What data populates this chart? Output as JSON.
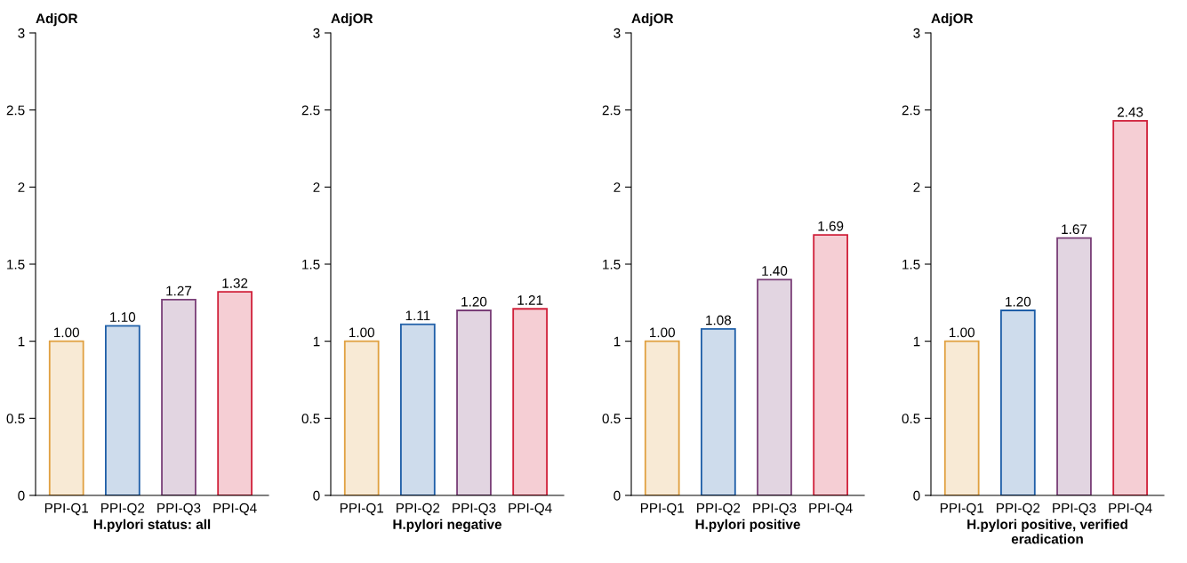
{
  "chart_data": [
    {
      "type": "bar",
      "xlabel": "H.pylori status: all",
      "ylabel": "AdjOR",
      "categories": [
        "PPI-Q1",
        "PPI-Q2",
        "PPI-Q3",
        "PPI-Q4"
      ],
      "values": [
        1.0,
        1.1,
        1.27,
        1.32
      ],
      "value_labels": [
        "1.00",
        "1.10",
        "1.27",
        "1.32"
      ],
      "colors": [
        "#e0a040",
        "#1f5fa8",
        "#7a3f78",
        "#d0203a"
      ],
      "ylim": [
        0,
        3
      ],
      "yticks": [
        0,
        0.5,
        1,
        1.5,
        2,
        2.5,
        3
      ],
      "grid": false,
      "legend": false
    },
    {
      "type": "bar",
      "xlabel": "H.pylori negative",
      "ylabel": "AdjOR",
      "categories": [
        "PPI-Q1",
        "PPI-Q2",
        "PPI-Q3",
        "PPI-Q4"
      ],
      "values": [
        1.0,
        1.11,
        1.2,
        1.21
      ],
      "value_labels": [
        "1.00",
        "1.11",
        "1.20",
        "1.21"
      ],
      "colors": [
        "#e0a040",
        "#1f5fa8",
        "#7a3f78",
        "#d0203a"
      ],
      "ylim": [
        0,
        3
      ],
      "yticks": [
        0,
        0.5,
        1,
        1.5,
        2,
        2.5,
        3
      ],
      "grid": false,
      "legend": false
    },
    {
      "type": "bar",
      "xlabel": "H.pylori positive",
      "ylabel": "AdjOR",
      "categories": [
        "PPI-Q1",
        "PPI-Q2",
        "PPI-Q3",
        "PPI-Q4"
      ],
      "values": [
        1.0,
        1.08,
        1.4,
        1.69
      ],
      "value_labels": [
        "1.00",
        "1.08",
        "1.40",
        "1.69"
      ],
      "colors": [
        "#e0a040",
        "#1f5fa8",
        "#7a3f78",
        "#d0203a"
      ],
      "ylim": [
        0,
        3
      ],
      "yticks": [
        0,
        0.5,
        1,
        1.5,
        2,
        2.5,
        3
      ],
      "grid": false,
      "legend": false
    },
    {
      "type": "bar",
      "xlabel": "H.pylori positive, verified\neradication",
      "ylabel": "AdjOR",
      "categories": [
        "PPI-Q1",
        "PPI-Q2",
        "PPI-Q3",
        "PPI-Q4"
      ],
      "values": [
        1.0,
        1.2,
        1.67,
        2.43
      ],
      "value_labels": [
        "1.00",
        "1.20",
        "1.67",
        "2.43"
      ],
      "colors": [
        "#e0a040",
        "#1f5fa8",
        "#7a3f78",
        "#d0203a"
      ],
      "ylim": [
        0,
        3
      ],
      "yticks": [
        0,
        0.5,
        1,
        1.5,
        2,
        2.5,
        3
      ],
      "grid": false,
      "legend": false
    }
  ]
}
